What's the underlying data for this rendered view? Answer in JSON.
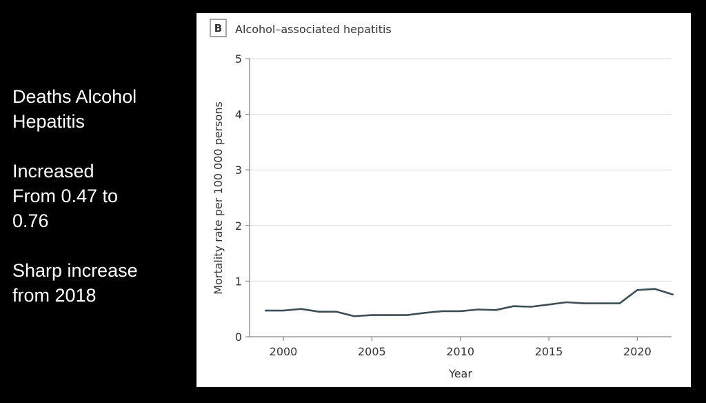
{
  "slide_text": {
    "heading": "Deaths Alcohol\nHepatitis",
    "finding": "Increased\nFrom 0.47 to\n0.76",
    "note": "Sharp increase\nfrom 2018"
  },
  "chart_data": {
    "type": "line",
    "panel_label": "B",
    "title": "Alcohol–associated hepatitis",
    "xlabel": "Year",
    "ylabel": "Mortality rate per 100 000 persons",
    "xlim": [
      1998,
      2022
    ],
    "ylim": [
      0,
      5
    ],
    "xticks": [
      2000,
      2005,
      2010,
      2015,
      2020
    ],
    "yticks": [
      0,
      1,
      2,
      3,
      4,
      5
    ],
    "grid": "horizontal",
    "line_color": "#3d4f55",
    "series": [
      {
        "name": "Alcohol-associated hepatitis",
        "x": [
          1999,
          2000,
          2001,
          2002,
          2003,
          2004,
          2005,
          2006,
          2007,
          2008,
          2009,
          2010,
          2011,
          2012,
          2013,
          2014,
          2015,
          2016,
          2017,
          2018,
          2019,
          2020,
          2021,
          2022
        ],
        "y": [
          0.47,
          0.47,
          0.5,
          0.45,
          0.45,
          0.37,
          0.39,
          0.39,
          0.39,
          0.43,
          0.46,
          0.46,
          0.49,
          0.48,
          0.55,
          0.54,
          0.58,
          0.62,
          0.6,
          0.6,
          0.6,
          0.84,
          0.86,
          0.76
        ]
      }
    ]
  }
}
